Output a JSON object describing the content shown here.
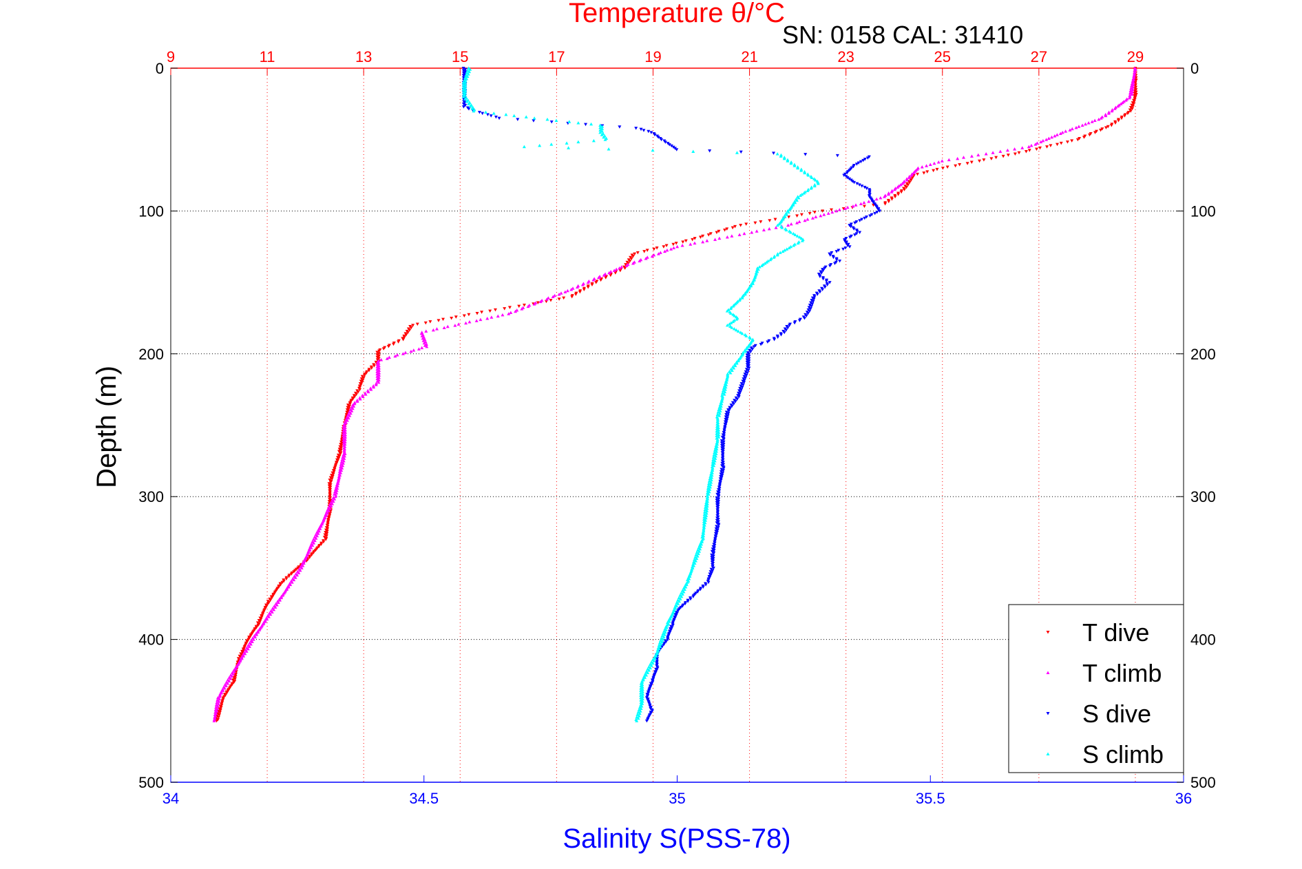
{
  "chart_data": {
    "type": "scatter",
    "title": "Temperature θ/°C",
    "annotation": "SN: 0158  CAL: 31410",
    "xlabel_bottom": "Salinity S(PSS-78)",
    "ylabel": "Depth (m)",
    "temp_axis": {
      "range": [
        9,
        30
      ],
      "ticks": [
        "9",
        "11",
        "13",
        "15",
        "17",
        "19",
        "21",
        "23",
        "25",
        "27",
        "29"
      ],
      "color": "#ff0000"
    },
    "sal_axis": {
      "range": [
        34,
        36
      ],
      "ticks": [
        "34",
        "34.5",
        "35",
        "35.5",
        "36"
      ],
      "color": "#0000ff"
    },
    "depth_axis": {
      "range": [
        0,
        500
      ],
      "reversed": true,
      "ticks": [
        "0",
        "100",
        "200",
        "300",
        "400",
        "500"
      ]
    },
    "grid": true,
    "legend": {
      "position": "bottom-right",
      "entries": [
        "T dive",
        "T climb",
        "S dive",
        "S climb"
      ]
    },
    "series": [
      {
        "name": "T dive",
        "variable": "temperature",
        "color": "#ff0000",
        "depth": [
          0,
          10,
          20,
          30,
          40,
          50,
          60,
          70,
          75,
          85,
          95,
          100,
          105,
          110,
          120,
          130,
          140,
          150,
          160,
          165,
          170,
          175,
          180,
          190,
          198,
          205,
          215,
          225,
          235,
          250,
          270,
          290,
          310,
          330,
          345,
          360,
          375,
          390,
          400,
          415,
          430,
          440,
          457
        ],
        "values": [
          29.0,
          29.0,
          29.0,
          28.9,
          28.5,
          27.8,
          26.5,
          25.0,
          24.4,
          24.2,
          23.8,
          22.5,
          21.7,
          20.8,
          19.8,
          18.6,
          18.4,
          17.8,
          17.3,
          16.5,
          15.6,
          14.8,
          14.0,
          13.8,
          13.3,
          13.3,
          13.0,
          12.9,
          12.7,
          12.6,
          12.5,
          12.3,
          12.3,
          12.2,
          11.8,
          11.3,
          11.0,
          10.8,
          10.6,
          10.4,
          10.3,
          10.1,
          9.95
        ]
      },
      {
        "name": "T climb",
        "variable": "temperature",
        "color": "#ff00ff",
        "depth": [
          0,
          20,
          35,
          45,
          55,
          65,
          70,
          80,
          90,
          100,
          110,
          125,
          140,
          155,
          172,
          185,
          195,
          205,
          220,
          235,
          250,
          270,
          300,
          350,
          400,
          440,
          457
        ],
        "values": [
          29.0,
          28.9,
          28.3,
          27.5,
          26.8,
          25.0,
          24.5,
          24.2,
          23.8,
          22.8,
          21.8,
          19.5,
          18.3,
          17.3,
          16.0,
          14.2,
          14.3,
          13.3,
          13.3,
          12.8,
          12.6,
          12.6,
          12.4,
          11.7,
          10.7,
          10.0,
          9.9
        ]
      },
      {
        "name": "S dive",
        "variable": "salinity",
        "color": "#0000ff",
        "depth": [
          0,
          5,
          10,
          15,
          20,
          25,
          27,
          30,
          35,
          42,
          45,
          50,
          57,
          62,
          68,
          75,
          80,
          85,
          90,
          95,
          100,
          105,
          110,
          115,
          120,
          125,
          130,
          135,
          140,
          145,
          150,
          160,
          170,
          175,
          180,
          185,
          190,
          195,
          200,
          210,
          220,
          230,
          240,
          260,
          280,
          300,
          320,
          340,
          350,
          360,
          370,
          380,
          390,
          400,
          410,
          420,
          430,
          440,
          450,
          457
        ],
        "values": [
          34.58,
          34.58,
          34.58,
          34.58,
          34.58,
          34.58,
          34.58,
          34.6,
          34.65,
          34.92,
          34.95,
          34.97,
          35.0,
          35.38,
          35.35,
          35.33,
          35.35,
          35.38,
          35.38,
          35.39,
          35.4,
          35.37,
          35.34,
          35.36,
          35.33,
          35.34,
          35.3,
          35.32,
          35.29,
          35.28,
          35.3,
          35.27,
          35.26,
          35.25,
          35.22,
          35.21,
          35.19,
          35.15,
          35.14,
          35.14,
          35.13,
          35.12,
          35.1,
          35.09,
          35.09,
          35.08,
          35.08,
          35.07,
          35.07,
          35.06,
          35.03,
          35.0,
          34.99,
          34.98,
          34.96,
          34.96,
          34.95,
          34.94,
          34.95,
          34.94
        ]
      },
      {
        "name": "S climb",
        "variable": "salinity",
        "color": "#00ffff",
        "depth": [
          0,
          10,
          20,
          30,
          35,
          40,
          45,
          50,
          55,
          60,
          65,
          70,
          80,
          90,
          100,
          110,
          120,
          130,
          140,
          150,
          160,
          170,
          175,
          180,
          190,
          200,
          215,
          230,
          245,
          260,
          280,
          300,
          330,
          360,
          390,
          410,
          430,
          445,
          457
        ],
        "values": [
          34.59,
          34.58,
          34.58,
          34.6,
          34.72,
          34.85,
          34.85,
          34.86,
          34.7,
          35.2,
          35.22,
          35.24,
          35.28,
          35.24,
          35.22,
          35.2,
          35.25,
          35.2,
          35.16,
          35.15,
          35.13,
          35.1,
          35.12,
          35.1,
          35.15,
          35.13,
          35.1,
          35.09,
          35.08,
          35.08,
          35.07,
          35.06,
          35.05,
          35.02,
          34.98,
          34.96,
          34.93,
          34.93,
          34.92
        ]
      }
    ]
  }
}
